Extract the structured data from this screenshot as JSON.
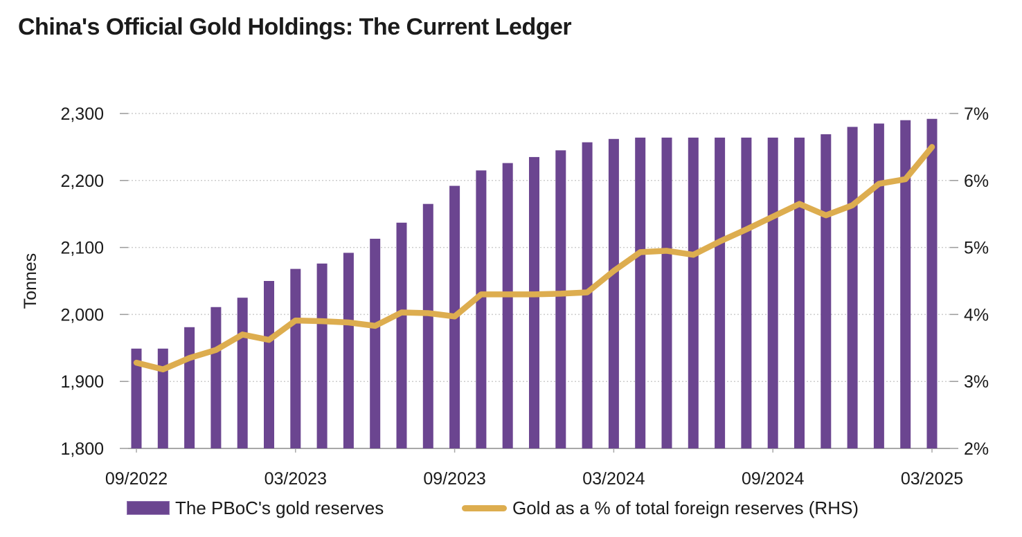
{
  "title": "China's Official Gold Holdings: The Current Ledger",
  "legend": [
    {
      "label": "The PBoC's gold reserves",
      "type": "bar",
      "color": "#6b4590"
    },
    {
      "label": "Gold as a % of total foreign reserves (RHS)",
      "type": "line",
      "color": "#ddad4f"
    }
  ],
  "colors": {
    "bar": "#6b4590",
    "line": "#ddad4f",
    "gridline": "#cccccc",
    "axis_line": "#a8a8a8",
    "tick_stub": "#999999",
    "text": "#1a1a1a"
  },
  "chart_data": {
    "type": "bar",
    "title": "China's Official Gold Holdings: The Current Ledger",
    "months": [
      "09/2022",
      "10/2022",
      "11/2022",
      "12/2022",
      "01/2023",
      "02/2023",
      "03/2023",
      "04/2023",
      "05/2023",
      "06/2023",
      "07/2023",
      "08/2023",
      "09/2023",
      "10/2023",
      "11/2023",
      "12/2023",
      "01/2024",
      "02/2024",
      "03/2024",
      "04/2024",
      "05/2024",
      "06/2024",
      "07/2024",
      "08/2024",
      "09/2024",
      "10/2024",
      "11/2024",
      "12/2024",
      "01/2025",
      "02/2025",
      "03/2025"
    ],
    "series": [
      {
        "name": "The PBoC's gold reserves",
        "type": "bar",
        "axis": "left",
        "color": "#6b4590",
        "values": [
          1949,
          1949,
          1981,
          2011,
          2025,
          2050,
          2068,
          2076,
          2092,
          2113,
          2137,
          2165,
          2192,
          2215,
          2226,
          2235,
          2245,
          2257,
          2262,
          2264,
          2264,
          2264,
          2264,
          2264,
          2264,
          2264,
          2269,
          2280,
          2285,
          2290,
          2292
        ]
      },
      {
        "name": "Gold as a % of total foreign reserves (RHS)",
        "type": "line",
        "axis": "right",
        "color": "#ddad4f",
        "values": [
          3.28,
          3.18,
          3.35,
          3.47,
          3.7,
          3.62,
          3.91,
          3.9,
          3.88,
          3.83,
          4.03,
          4.02,
          3.97,
          4.3,
          4.3,
          4.3,
          4.31,
          4.33,
          4.65,
          4.93,
          4.95,
          4.89,
          5.09,
          5.27,
          5.46,
          5.65,
          5.48,
          5.63,
          5.95,
          6.02,
          6.5
        ]
      }
    ],
    "left_axis": {
      "label": "Tonnes",
      "min": 1800,
      "max": 2300,
      "step": 100,
      "ticks": [
        "1,800",
        "1,900",
        "2,000",
        "2,100",
        "2,200",
        "2,300"
      ]
    },
    "right_axis": {
      "min": 2,
      "max": 7,
      "step": 1,
      "ticks": [
        "2%",
        "3%",
        "4%",
        "5%",
        "6%",
        "7%"
      ]
    },
    "x_tick_indices": [
      0,
      6,
      12,
      18,
      24,
      30
    ],
    "x_tick_labels": [
      "09/2022",
      "03/2023",
      "09/2023",
      "03/2024",
      "09/2024",
      "03/2025"
    ],
    "grid": "horizontal-dotted",
    "legend_position": "bottom"
  }
}
